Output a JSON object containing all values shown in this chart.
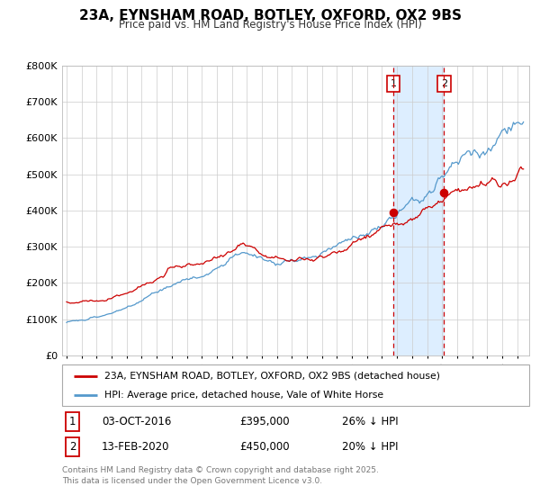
{
  "title": "23A, EYNSHAM ROAD, BOTLEY, OXFORD, OX2 9BS",
  "subtitle": "Price paid vs. HM Land Registry's House Price Index (HPI)",
  "ylim": [
    0,
    800000
  ],
  "yticks": [
    0,
    100000,
    200000,
    300000,
    400000,
    500000,
    600000,
    700000,
    800000
  ],
  "ytick_labels": [
    "£0",
    "£100K",
    "£200K",
    "£300K",
    "£400K",
    "£500K",
    "£600K",
    "£700K",
    "£800K"
  ],
  "xlim_start": 1994.7,
  "xlim_end": 2025.8,
  "red_line_color": "#cc0000",
  "blue_line_color": "#5599cc",
  "purchase1_x": 2016.75,
  "purchase1_y": 395000,
  "purchase1_label": "1",
  "purchase1_date": "03-OCT-2016",
  "purchase1_price": "£395,000",
  "purchase1_hpi": "26% ↓ HPI",
  "purchase2_x": 2020.12,
  "purchase2_y": 450000,
  "purchase2_label": "2",
  "purchase2_date": "13-FEB-2020",
  "purchase2_price": "£450,000",
  "purchase2_hpi": "20% ↓ HPI",
  "legend_red_label": "23A, EYNSHAM ROAD, BOTLEY, OXFORD, OX2 9BS (detached house)",
  "legend_blue_label": "HPI: Average price, detached house, Vale of White Horse",
  "footer": "Contains HM Land Registry data © Crown copyright and database right 2025.\nThis data is licensed under the Open Government Licence v3.0.",
  "background_color": "#ffffff",
  "shaded_region_color": "#ddeeff",
  "grid_color": "#cccccc"
}
